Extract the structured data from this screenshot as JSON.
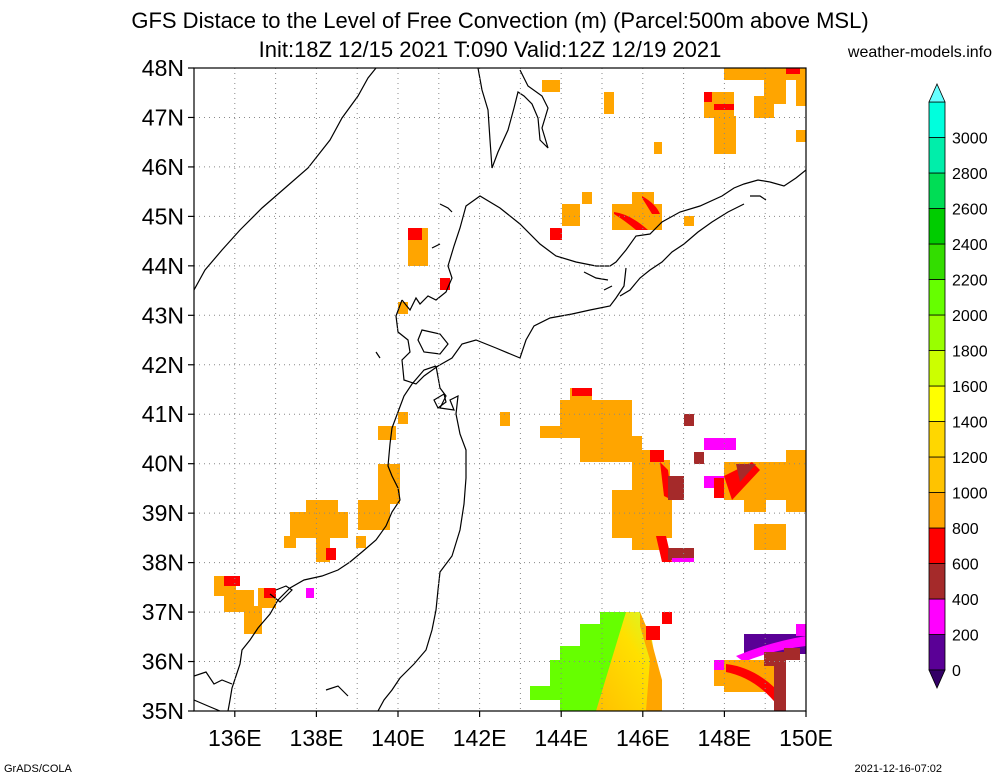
{
  "header": {
    "title_line1": "GFS Distace to the Level of Free Convection (m) (Parcel:500m above MSL)",
    "title_line2": "Init:18Z 12/15 2021 T:090 Valid:12Z 12/19 2021",
    "site": "weather-models.info"
  },
  "footer": {
    "left": "GrADS/COLA",
    "right": "2021-12-16-07:02"
  },
  "map": {
    "lon_range": [
      135,
      150
    ],
    "lat_range": [
      35,
      48
    ],
    "lat_labels": [
      "35N",
      "36N",
      "37N",
      "38N",
      "39N",
      "40N",
      "41N",
      "42N",
      "43N",
      "44N",
      "45N",
      "46N",
      "47N",
      "48N"
    ],
    "lon_labels": [
      "136E",
      "138E",
      "140E",
      "142E",
      "144E",
      "146E",
      "148E",
      "150E"
    ],
    "grid": "dotted"
  },
  "colorbar": {
    "labels": [
      "0",
      "200",
      "400",
      "600",
      "800",
      "1000",
      "1200",
      "1400",
      "1600",
      "1800",
      "2000",
      "2200",
      "2400",
      "2600",
      "2800",
      "3000"
    ],
    "colors": [
      "#5a0096",
      "#ff00ff",
      "#a52a2a",
      "#ff0000",
      "#ffa500",
      "#ffc300",
      "#ffd700",
      "#ffff00",
      "#ccff00",
      "#99ff00",
      "#66ff00",
      "#33dd00",
      "#00cc00",
      "#00dd55",
      "#00eeaa",
      "#00ffdd"
    ],
    "top_color": "#66ffff",
    "bottom_color": "#330066"
  }
}
